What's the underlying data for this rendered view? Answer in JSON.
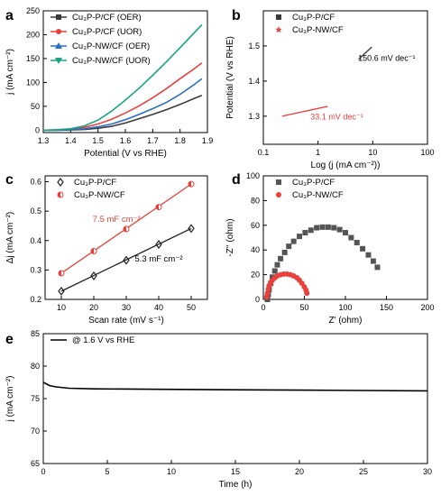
{
  "chart_data": [
    {
      "panel": "a",
      "type": "line",
      "xlabel": "Potential (V vs RHE)",
      "ylabel": "j (mA cm⁻²)",
      "xlim": [
        1.3,
        1.9
      ],
      "ylim": [
        -5,
        250
      ],
      "xticks": [
        "1.3",
        "1.4",
        "1.5",
        "1.6",
        "1.7",
        "1.8",
        "1.9"
      ],
      "yticks": [
        "0",
        "50",
        "100",
        "150",
        "200",
        "250"
      ],
      "legend_position": "top-left",
      "series": [
        {
          "name": "Cu₃P-P/CF (OER)",
          "color": "#3a3a3a",
          "marker": "square",
          "x": [
            1.3,
            1.35,
            1.4,
            1.45,
            1.5,
            1.55,
            1.6,
            1.65,
            1.7,
            1.75,
            1.8,
            1.85,
            1.88
          ],
          "y": [
            0,
            0,
            0.5,
            1.5,
            4,
            8,
            15,
            24,
            33,
            43,
            54,
            66,
            73
          ]
        },
        {
          "name": "Cu₃P-P/CF (UOR)",
          "color": "#e8413c",
          "marker": "circle",
          "x": [
            1.3,
            1.35,
            1.4,
            1.45,
            1.5,
            1.55,
            1.6,
            1.65,
            1.7,
            1.75,
            1.8,
            1.85,
            1.88
          ],
          "y": [
            0,
            0.5,
            2,
            6,
            13,
            23,
            36,
            51,
            68,
            87,
            108,
            128,
            141
          ]
        },
        {
          "name": "Cu₃P-NW/CF (OER)",
          "color": "#2b6fc4",
          "marker": "triangle",
          "x": [
            1.3,
            1.35,
            1.4,
            1.45,
            1.5,
            1.55,
            1.6,
            1.65,
            1.7,
            1.75,
            1.8,
            1.85,
            1.88
          ],
          "y": [
            0,
            0.3,
            1,
            3,
            7,
            13,
            22,
            33,
            45,
            58,
            75,
            95,
            108
          ]
        },
        {
          "name": "Cu₃P-NW/CF (UOR)",
          "color": "#1aa382",
          "marker": "triangle-down",
          "x": [
            1.3,
            1.35,
            1.4,
            1.45,
            1.5,
            1.55,
            1.6,
            1.65,
            1.7,
            1.75,
            1.8,
            1.85,
            1.88
          ],
          "y": [
            0,
            1,
            3,
            9,
            21,
            40,
            63,
            88,
            115,
            143,
            173,
            203,
            221
          ]
        }
      ]
    },
    {
      "panel": "b",
      "type": "scatter",
      "xlabel": "Log (j (mA cm⁻²))",
      "ylabel": "Potential (V vs RHE)",
      "xlim": [
        0.1,
        100
      ],
      "xscale": "log",
      "ylim": [
        1.22,
        1.6
      ],
      "xticks": [
        "0.1",
        "1",
        "10",
        "100"
      ],
      "yticks": [
        "1.3",
        "1.4",
        "1.5"
      ],
      "legend_position": "top-left",
      "series": [
        {
          "name": "Cu₃P-P/CF",
          "color": "#3a3a3a",
          "marker": "square",
          "x": [
            5.5,
            6.5,
            7.5,
            8.5,
            9.6
          ],
          "y": [
            1.462,
            1.472,
            1.481,
            1.489,
            1.497
          ]
        },
        {
          "name": "Cu₃P-NW/CF",
          "color": "#e8413c",
          "marker": "star",
          "x": [
            0.22,
            0.3,
            0.4,
            0.55,
            0.75,
            1.0,
            1.3,
            1.5
          ],
          "y": [
            1.3,
            1.304,
            1.308,
            1.313,
            1.317,
            1.321,
            1.325,
            1.328
          ]
        }
      ],
      "annotations": [
        "150.6 mV dec⁻¹",
        "33.1 mV dec⁻¹"
      ]
    },
    {
      "panel": "c",
      "type": "scatter",
      "xlabel": "Scan rate (mV s⁻¹)",
      "ylabel": "Δj (mA cm⁻²)",
      "xlim": [
        5,
        55
      ],
      "ylim": [
        0.2,
        0.62
      ],
      "xticks": [
        "10",
        "20",
        "30",
        "40",
        "50"
      ],
      "yticks": [
        "0.2",
        "0.3",
        "0.4",
        "0.5",
        "0.6"
      ],
      "legend_position": "top-left",
      "series": [
        {
          "name": "Cu₃P-P/CF",
          "color": "#222222",
          "marker": "diamond",
          "x": [
            10,
            20,
            30,
            40,
            50
          ],
          "y": [
            0.228,
            0.28,
            0.333,
            0.387,
            0.441
          ]
        },
        {
          "name": "Cu₃P-NW/CF",
          "color": "#e8413c",
          "marker": "half-circle",
          "x": [
            10,
            20,
            30,
            40,
            50
          ],
          "y": [
            0.289,
            0.364,
            0.439,
            0.514,
            0.592
          ]
        }
      ],
      "annotations": [
        "7.5 mF cm⁻²",
        "5.3 mF cm⁻²"
      ]
    },
    {
      "panel": "d",
      "type": "scatter",
      "xlabel": "Z' (ohm)",
      "ylabel": "-Z'' (ohm)",
      "xlim": [
        0,
        200
      ],
      "ylim": [
        0,
        100
      ],
      "xticks": [
        "0",
        "50",
        "100",
        "150",
        "200"
      ],
      "yticks": [
        "0",
        "20",
        "40",
        "60",
        "80",
        "100"
      ],
      "legend_position": "top-left",
      "series": [
        {
          "name": "Cu₃P-P/CF",
          "color": "#555555",
          "marker": "square",
          "x": [
            5,
            6,
            7,
            9,
            11,
            14,
            17,
            21,
            26,
            31,
            37,
            44,
            51,
            58,
            65,
            72,
            79,
            86,
            93,
            100,
            107,
            114,
            121,
            128,
            134,
            139
          ],
          "y": [
            0,
            4,
            8,
            13,
            18,
            23,
            28,
            33,
            38,
            43,
            47,
            51,
            54,
            56,
            58,
            58.5,
            58.5,
            58,
            56.5,
            54,
            50,
            46,
            41,
            36,
            31,
            26
          ]
        },
        {
          "name": "Cu₃P-NW/CF",
          "color": "#e8413c",
          "marker": "circle",
          "x": [
            4,
            5,
            6,
            7,
            9,
            11,
            14,
            17,
            21,
            25,
            29,
            33,
            37,
            41,
            44,
            47,
            50,
            52,
            53
          ],
          "y": [
            2,
            5,
            8,
            11,
            13.5,
            15.5,
            17.5,
            19,
            20,
            20.5,
            20.5,
            20,
            19,
            17.5,
            15.5,
            13,
            10,
            7.5,
            5
          ]
        }
      ]
    },
    {
      "panel": "e",
      "type": "line",
      "xlabel": "Time (h)",
      "ylabel": "j (mA cm⁻²)",
      "xlim": [
        0,
        30
      ],
      "ylim": [
        65,
        85
      ],
      "xticks": [
        "0",
        "5",
        "10",
        "15",
        "20",
        "25",
        "30"
      ],
      "yticks": [
        "65",
        "70",
        "75",
        "80",
        "85"
      ],
      "legend_position": "top-left",
      "series": [
        {
          "name": "@ 1.6 V vs RHE",
          "color": "#000000",
          "x": [
            0,
            0.2,
            0.5,
            1,
            2,
            4,
            8,
            12,
            16,
            20,
            25,
            30
          ],
          "y": [
            77.5,
            77.3,
            77.0,
            76.8,
            76.6,
            76.5,
            76.45,
            76.4,
            76.35,
            76.3,
            76.25,
            76.2
          ]
        }
      ]
    }
  ],
  "panel_labels": [
    "a",
    "b",
    "c",
    "d",
    "e"
  ]
}
